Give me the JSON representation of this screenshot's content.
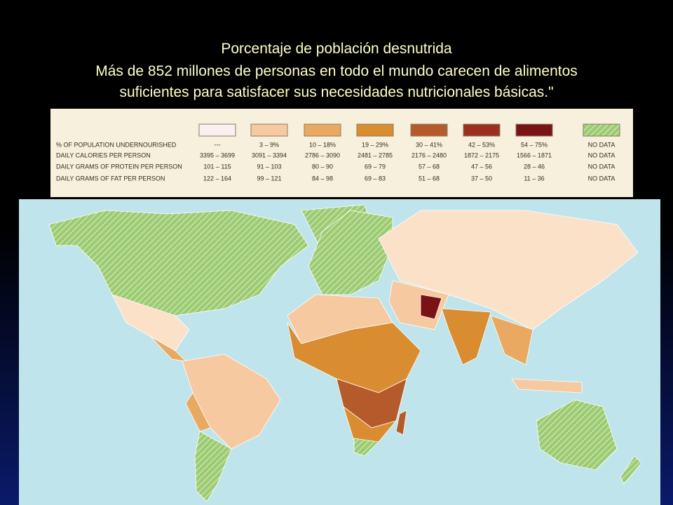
{
  "header": {
    "title": [
      "Porcentaje de población desnutrida",
      "Más de 852 millones de personas en todo el mundo carecen de alimentos",
      "suficientes para satisfacer sus necesidades nutricionales básicas.\""
    ]
  },
  "legend": {
    "colors": [
      "#fbeff0",
      "#f6c9a0",
      "#e9a960",
      "#d98c30",
      "#b55a2a",
      "#9b3020",
      "#7a1414",
      "hatch"
    ],
    "rows": [
      {
        "label": "% OF POPULATION UNDERNOURISHED",
        "cells": [
          "---",
          "3 – 9%",
          "10 – 18%",
          "19 – 29%",
          "30 – 41%",
          "42 – 53%",
          "54 – 75%",
          "NO DATA"
        ]
      },
      {
        "label": "DAILY CALORIES PER PERSON",
        "cells": [
          "3395 – 3699",
          "3091 – 3394",
          "2786 – 3090",
          "2481 – 2785",
          "2176 – 2480",
          "1872 – 2175",
          "1566 – 1871",
          "NO DATA"
        ]
      },
      {
        "label": "DAILY GRAMS OF PROTEIN PER PERSON",
        "cells": [
          "101 – 115",
          "91 – 103",
          "80 – 90",
          "69 – 79",
          "57 – 68",
          "47 – 56",
          "28 – 46",
          "NO DATA"
        ]
      },
      {
        "label": "DAILY GRAMS OF FAT PER PERSON",
        "cells": [
          "122 – 164",
          "99 – 121",
          "84 – 98",
          "69 – 83",
          "51 – 68",
          "37 – 50",
          "11 – 36",
          "NO DATA"
        ]
      }
    ]
  }
}
